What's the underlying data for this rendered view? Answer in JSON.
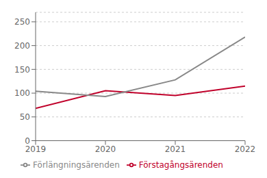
{
  "chart_data": {
    "type": "line",
    "x": [
      2019,
      2020,
      2021,
      2022
    ],
    "xlim": [
      2019,
      2022
    ],
    "xticks": [
      2019,
      2020,
      2021,
      2022
    ],
    "series": [
      {
        "name": "Förstagångsärenden",
        "color": "#c0002a",
        "values": [
          68,
          105,
          95,
          115
        ]
      },
      {
        "name": "Förlängningsärenden",
        "color": "#888888",
        "values": [
          104,
          93,
          128,
          218
        ]
      }
    ],
    "ylim": [
      0,
      270
    ],
    "yticks": [
      0,
      50,
      100,
      150,
      200,
      250
    ],
    "grid": true,
    "legend": "bottom"
  }
}
